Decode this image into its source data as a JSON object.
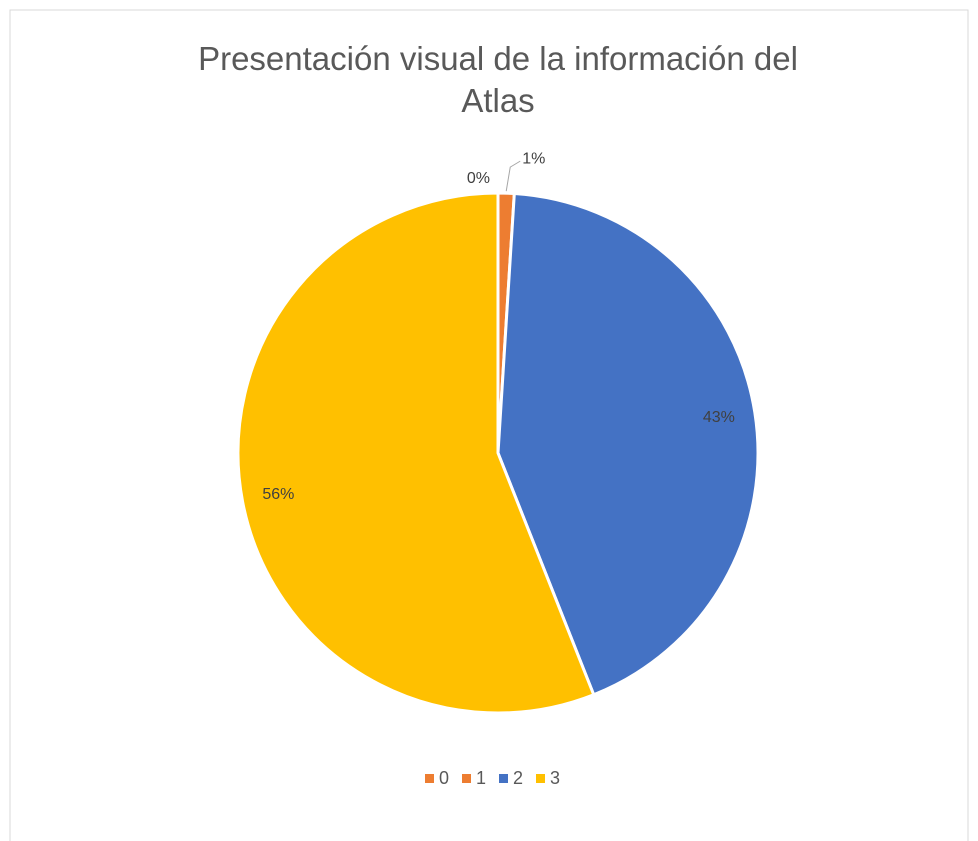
{
  "chart_data": {
    "type": "pie",
    "title": "Presentación visual de la información del Atlas",
    "categories": [
      "0",
      "1",
      "2",
      "3"
    ],
    "values": [
      0,
      1,
      43,
      56
    ],
    "value_labels": [
      "0%",
      "1%",
      "43%",
      "56%"
    ],
    "colors": [
      "#ed7d31",
      "#ed7d31",
      "#4472c4",
      "#ffc000"
    ],
    "legend": "bottom"
  }
}
